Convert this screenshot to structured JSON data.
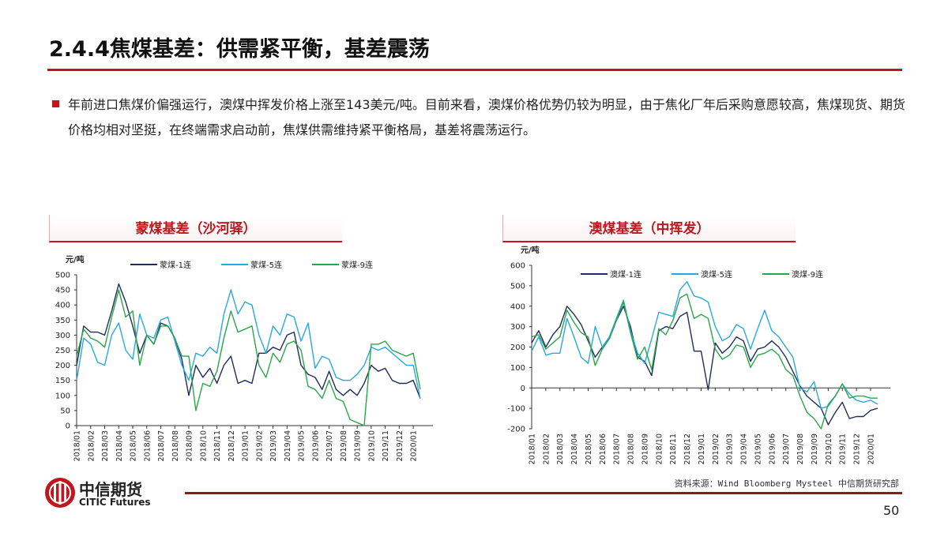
{
  "slide": {
    "title": "2.4.4焦煤基差：供需紧平衡，基差震荡",
    "bullet": "年前进口焦煤价偏强运行，澳煤中挥发价格上涨至143美元/吨。目前来看，澳煤价格优势仍较为明显，由于焦化厂年后采购意愿较高，焦煤现货、期货价格均相对坚挺，在终端需求启动前，焦煤供需维持紧平衡格局，基差将震荡运行。",
    "source": "资料来源：Wind Bloomberg Mysteel 中信期货研究部",
    "page_number": "50",
    "logo": {
      "cn": "中信期货",
      "en": "CITIC Futures"
    },
    "accent_color": "#c0161c"
  },
  "chart_data": [
    {
      "type": "line",
      "title": "蒙煤基差（沙河驿）",
      "ylabel": "元/吨",
      "ylim": [
        0,
        500
      ],
      "yticks": [
        0,
        50,
        100,
        150,
        200,
        250,
        300,
        350,
        400,
        450,
        500
      ],
      "xticks": [
        "2018/01",
        "2018/02",
        "2018/03",
        "2018/04",
        "2018/05",
        "2018/06",
        "2018/07",
        "2018/08",
        "2018/09",
        "2018/10",
        "2018/11",
        "2018/12",
        "2019/01",
        "2019/02",
        "2019/03",
        "2019/04",
        "2019/05",
        "2019/06",
        "2019/07",
        "2019/08",
        "2019/09",
        "2019/10",
        "2019/11",
        "2019/12",
        "2020/01"
      ],
      "x_note_sampling": "semi-monthly from 2018/01 to 2020/01",
      "legend": "top",
      "series": [
        {
          "name": "蒙煤-1连",
          "color": "#1f2d5c",
          "values": [
            200,
            330,
            310,
            310,
            300,
            380,
            470,
            410,
            330,
            240,
            300,
            270,
            340,
            330,
            290,
            220,
            100,
            200,
            160,
            190,
            140,
            200,
            230,
            140,
            150,
            140,
            240,
            240,
            260,
            250,
            300,
            310,
            200,
            170,
            160,
            120,
            180,
            120,
            100,
            120,
            100,
            140,
            200,
            180,
            190,
            150,
            140,
            140,
            150,
            90
          ]
        },
        {
          "name": "蒙煤-5连",
          "color": "#29a8e0",
          "values": [
            150,
            290,
            270,
            210,
            200,
            300,
            340,
            250,
            220,
            370,
            300,
            290,
            350,
            360,
            280,
            200,
            150,
            240,
            230,
            260,
            240,
            370,
            450,
            370,
            410,
            400,
            300,
            240,
            330,
            300,
            370,
            360,
            280,
            340,
            190,
            230,
            220,
            160,
            150,
            150,
            170,
            200,
            260,
            250,
            260,
            240,
            220,
            200,
            200,
            90
          ]
        },
        {
          "name": "蒙煤-9连",
          "color": "#2aa64a",
          "values": [
            230,
            320,
            290,
            280,
            260,
            360,
            450,
            360,
            380,
            200,
            300,
            270,
            330,
            330,
            290,
            230,
            230,
            50,
            140,
            130,
            180,
            290,
            380,
            310,
            320,
            330,
            200,
            160,
            240,
            210,
            270,
            280,
            250,
            130,
            120,
            90,
            150,
            90,
            80,
            20,
            10,
            0,
            270,
            270,
            280,
            250,
            240,
            230,
            240,
            120
          ]
        }
      ]
    },
    {
      "type": "line",
      "title": "澳煤基差（中挥发）",
      "ylabel": "元/吨",
      "ylim": [
        -200,
        600
      ],
      "yticks": [
        -200,
        -100,
        0,
        100,
        200,
        300,
        400,
        500,
        600
      ],
      "xticks": [
        "2018/01",
        "2018/02",
        "2018/03",
        "2018/04",
        "2018/05",
        "2018/06",
        "2018/07",
        "2018/08",
        "2018/09",
        "2018/10",
        "2018/11",
        "2018/12",
        "2019/01",
        "2019/02",
        "2019/03",
        "2019/04",
        "2019/05",
        "2019/06",
        "2019/07",
        "2019/08",
        "2019/09",
        "2019/10",
        "2019/11",
        "2019/12",
        "2020/01"
      ],
      "x_note_sampling": "semi-monthly from 2018/01 to 2020/01",
      "legend": "top",
      "series": [
        {
          "name": "澳煤-1连",
          "color": "#1f2d5c",
          "values": [
            220,
            280,
            200,
            260,
            300,
            400,
            360,
            310,
            230,
            150,
            200,
            240,
            330,
            400,
            300,
            150,
            130,
            60,
            280,
            300,
            290,
            350,
            370,
            180,
            180,
            -10,
            220,
            170,
            200,
            250,
            230,
            130,
            190,
            200,
            230,
            200,
            150,
            80,
            10,
            -40,
            -70,
            -100,
            -180,
            -120,
            -70,
            -150,
            -140,
            -140,
            -110,
            -100
          ]
        },
        {
          "name": "澳煤-5连",
          "color": "#29a8e0",
          "values": [
            180,
            250,
            160,
            170,
            170,
            340,
            250,
            150,
            120,
            300,
            200,
            250,
            340,
            430,
            280,
            170,
            120,
            240,
            370,
            360,
            350,
            480,
            520,
            450,
            440,
            420,
            300,
            230,
            250,
            310,
            290,
            190,
            290,
            380,
            280,
            250,
            200,
            150,
            0,
            -20,
            30,
            -100,
            -90,
            -40,
            20,
            -30,
            -60,
            -70,
            -60,
            -80
          ]
        },
        {
          "name": "澳煤-9连",
          "color": "#2aa64a",
          "values": [
            250,
            260,
            190,
            220,
            250,
            380,
            320,
            270,
            250,
            110,
            190,
            240,
            330,
            420,
            270,
            140,
            200,
            90,
            290,
            260,
            330,
            440,
            460,
            340,
            360,
            340,
            190,
            140,
            160,
            210,
            200,
            100,
            160,
            170,
            190,
            160,
            90,
            60,
            -40,
            -120,
            -150,
            -200,
            -80,
            -40,
            20,
            -50,
            -40,
            -40,
            -50,
            -50
          ]
        }
      ]
    }
  ]
}
